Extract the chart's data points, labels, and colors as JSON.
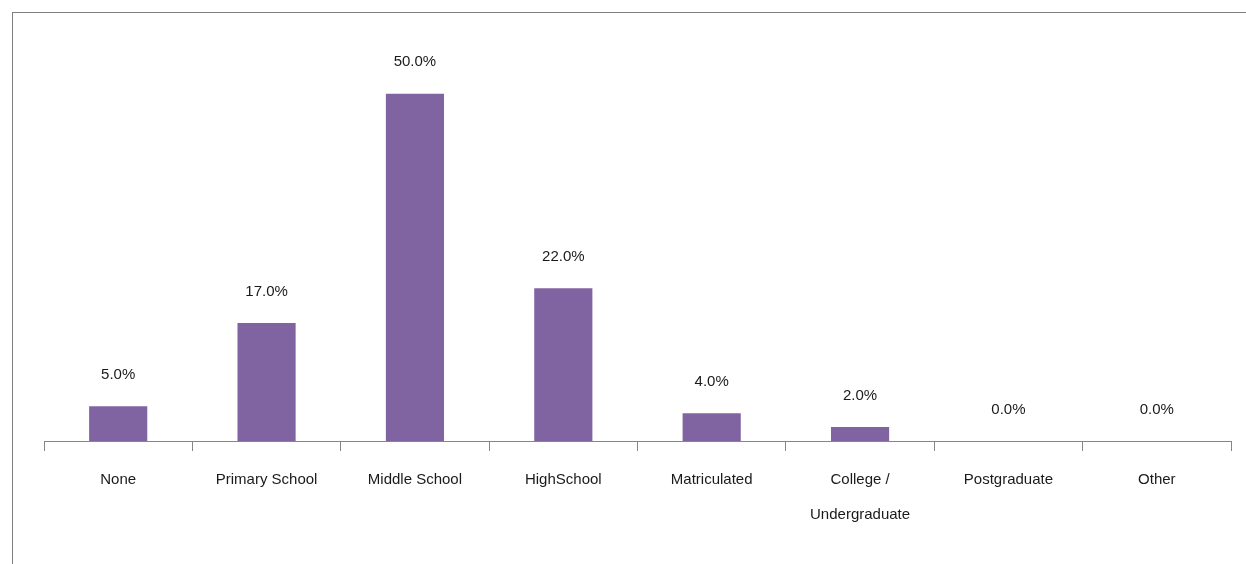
{
  "chart_data": {
    "type": "bar",
    "categories": [
      "None",
      "Primary School",
      "Middle School",
      "HighSchool",
      "Matriculated",
      "College / Undergraduate",
      "Postgraduate",
      "Other"
    ],
    "values": [
      5,
      17,
      50,
      22,
      4,
      2,
      0,
      0
    ],
    "value_labels": [
      "5.0%",
      "17.0%",
      "50.0%",
      "22.0%",
      "4.0%",
      "2.0%",
      "0.0%",
      "0.0%"
    ],
    "color": "#8064a2"
  }
}
